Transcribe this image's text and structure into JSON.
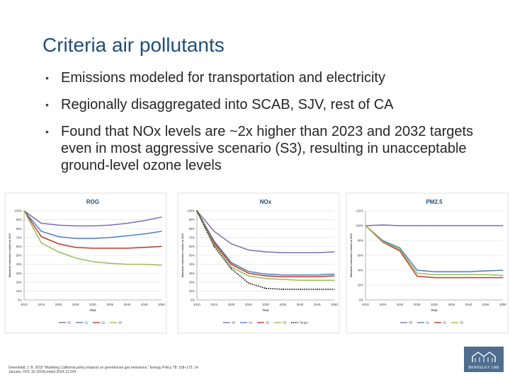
{
  "slide": {
    "title": "Criteria air pollutants",
    "bullets": [
      "Emissions modeled for transportation and electricity",
      "Regionally disaggregated into SCAB, SJV, rest of CA",
      "Found that NOx levels are ~2x higher than 2023 and 2032 targets even in most aggressive scenario (S3), resulting in unacceptable ground-level ozone levels"
    ],
    "bullet_glyph": "•",
    "citation_line1": "Greenblatt, J. B. 2015 \"Modeling California policy impacts on greenhouse gas emissions.\" Energy Policy 78: 158–172. 14",
    "citation_line2": "January. DOI: 10.1016/j.enpol.2014.12.024",
    "logo_text": "BERKELEY LAB",
    "colors": {
      "title": "#1f4e79",
      "s0": "#7f6cb5",
      "s1": "#4f81bd",
      "s2": "#c0392b",
      "s3": "#9bbb59",
      "target": "#000000",
      "logo_bg": "#4f6d8f"
    }
  },
  "chart_data": [
    {
      "type": "line",
      "title": "ROG",
      "ylabel": "Statewide emissions relative to 2010",
      "xlabel": "Year",
      "x": [
        2010,
        2015,
        2020,
        2025,
        2030,
        2035,
        2040,
        2045,
        2050
      ],
      "xticks": [
        "2010",
        "2015",
        "2020",
        "2025",
        "2030",
        "2035",
        "2040",
        "2045",
        "2050"
      ],
      "yticks": [
        "0%",
        "10%",
        "20%",
        "30%",
        "40%",
        "50%",
        "60%",
        "70%",
        "80%",
        "90%",
        "100%"
      ],
      "ylim": [
        0,
        1.0
      ],
      "series": [
        {
          "name": "S0",
          "color": "#7f6cb5",
          "values": [
            1.0,
            0.86,
            0.84,
            0.83,
            0.83,
            0.84,
            0.86,
            0.89,
            0.93
          ]
        },
        {
          "name": "S1",
          "color": "#4f81bd",
          "values": [
            1.0,
            0.77,
            0.71,
            0.69,
            0.69,
            0.7,
            0.72,
            0.74,
            0.77
          ]
        },
        {
          "name": "S2",
          "color": "#c0392b",
          "values": [
            1.0,
            0.71,
            0.63,
            0.59,
            0.58,
            0.58,
            0.58,
            0.59,
            0.6
          ]
        },
        {
          "name": "S3",
          "color": "#9bbb59",
          "values": [
            1.0,
            0.64,
            0.54,
            0.47,
            0.43,
            0.41,
            0.4,
            0.4,
            0.39
          ]
        }
      ],
      "legend": [
        "S0",
        "S1",
        "S2",
        "S3"
      ],
      "legend_position": "bottom"
    },
    {
      "type": "line",
      "title": "NOx",
      "ylabel": "Statewide emissions relative to 2010",
      "xlabel": "Year",
      "x": [
        2010,
        2015,
        2020,
        2025,
        2030,
        2035,
        2040,
        2045,
        2050
      ],
      "xticks": [
        "2010",
        "2015",
        "2020",
        "2025",
        "2030",
        "2035",
        "2040",
        "2045",
        "2050"
      ],
      "yticks": [
        "0%",
        "10%",
        "20%",
        "30%",
        "40%",
        "50%",
        "60%",
        "70%",
        "80%",
        "90%",
        "100%"
      ],
      "ylim": [
        0,
        1.0
      ],
      "series": [
        {
          "name": "S0",
          "color": "#7f6cb5",
          "values": [
            1.0,
            0.77,
            0.63,
            0.56,
            0.54,
            0.53,
            0.53,
            0.53,
            0.54
          ]
        },
        {
          "name": "S1",
          "color": "#4f81bd",
          "values": [
            1.0,
            0.66,
            0.42,
            0.32,
            0.29,
            0.28,
            0.28,
            0.28,
            0.29
          ]
        },
        {
          "name": "S2",
          "color": "#c0392b",
          "values": [
            1.0,
            0.64,
            0.4,
            0.3,
            0.27,
            0.26,
            0.26,
            0.26,
            0.27
          ]
        },
        {
          "name": "S3",
          "color": "#9bbb59",
          "values": [
            1.0,
            0.62,
            0.37,
            0.27,
            0.24,
            0.23,
            0.22,
            0.22,
            0.22
          ]
        },
        {
          "name": "Target",
          "color": "#000000",
          "dashed": true,
          "values": [
            1.0,
            0.6,
            0.35,
            0.19,
            0.13,
            0.12,
            0.12,
            0.12,
            0.12
          ]
        }
      ],
      "legend": [
        "S0",
        "S1",
        "S2",
        "S3",
        "Target"
      ],
      "legend_position": "bottom"
    },
    {
      "type": "line",
      "title": "PM2.5",
      "ylabel": "Statewide emissions relative to 2010",
      "xlabel": "Year",
      "x": [
        2010,
        2015,
        2020,
        2025,
        2030,
        2035,
        2040,
        2045,
        2050
      ],
      "xticks": [
        "2010",
        "2015",
        "2020",
        "2025",
        "2030",
        "2035",
        "2040",
        "2045",
        "2050"
      ],
      "yticks": [
        "0%",
        "20%",
        "40%",
        "60%",
        "80%",
        "100%",
        "120%"
      ],
      "ylim": [
        0,
        1.2
      ],
      "series": [
        {
          "name": "S0",
          "color": "#7f6cb5",
          "values": [
            1.0,
            1.01,
            1.0,
            1.0,
            1.0,
            1.0,
            1.0,
            1.0,
            1.0
          ]
        },
        {
          "name": "S1",
          "color": "#4f81bd",
          "values": [
            1.0,
            0.8,
            0.7,
            0.4,
            0.38,
            0.38,
            0.38,
            0.39,
            0.4
          ]
        },
        {
          "name": "S2",
          "color": "#c0392b",
          "values": [
            1.0,
            0.78,
            0.66,
            0.32,
            0.3,
            0.3,
            0.3,
            0.3,
            0.3
          ]
        },
        {
          "name": "S3",
          "color": "#9bbb59",
          "values": [
            1.0,
            0.79,
            0.68,
            0.36,
            0.34,
            0.34,
            0.34,
            0.34,
            0.33
          ]
        }
      ],
      "legend": [
        "S0",
        "S1",
        "S2",
        "S3"
      ],
      "legend_position": "bottom"
    }
  ]
}
